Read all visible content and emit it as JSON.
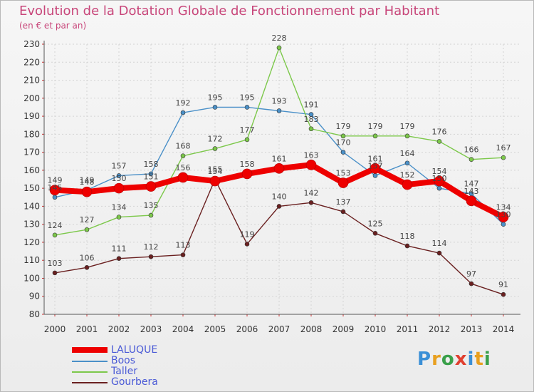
{
  "header": {
    "title": "Evolution de la Dotation Globale de Fonctionnement par Habitant",
    "subtitle": "(en € et par an)"
  },
  "logo": {
    "text": "Proxiti",
    "letters": [
      {
        "ch": "P",
        "color": "#3a8fd6"
      },
      {
        "ch": "r",
        "color": "#e8a020"
      },
      {
        "ch": "o",
        "color": "#3aa04a"
      },
      {
        "ch": "x",
        "color": "#e04030"
      },
      {
        "ch": "i",
        "color": "#3a8fd6"
      },
      {
        "ch": "t",
        "color": "#e8a020"
      },
      {
        "ch": "i",
        "color": "#3aa04a"
      }
    ]
  },
  "chart_data": {
    "type": "line",
    "title": "Evolution de la Dotation Globale de Fonctionnement par Habitant",
    "ylabel": "(en € et par an)",
    "xlabel": "",
    "categories": [
      "2000",
      "2001",
      "2002",
      "2003",
      "2004",
      "2005",
      "2006",
      "2007",
      "2008",
      "2009",
      "2010",
      "2011",
      "2012",
      "2013",
      "2014"
    ],
    "ylim": [
      80,
      230
    ],
    "yticks": [
      80,
      90,
      100,
      110,
      120,
      130,
      140,
      150,
      160,
      170,
      180,
      190,
      200,
      210,
      220,
      230
    ],
    "grid": true,
    "legend_position": "bottom-left",
    "series": [
      {
        "name": "Boos",
        "color": "#4a90c8",
        "values": [
          145,
          149,
          157,
          158,
          192,
          195,
          195,
          193,
          191,
          170,
          157,
          164,
          150,
          147,
          130
        ]
      },
      {
        "name": "Taller",
        "color": "#7cc84a",
        "values": [
          124,
          127,
          134,
          135,
          168,
          172,
          177,
          228,
          183,
          179,
          179,
          179,
          176,
          166,
          167
        ]
      },
      {
        "name": "Gourbera",
        "color": "#6a2020",
        "values": [
          103,
          106,
          111,
          112,
          113,
          155,
          119,
          140,
          142,
          137,
          125,
          118,
          114,
          97,
          91
        ]
      },
      {
        "name": "LALUQUE",
        "color": "#ee0000",
        "values": [
          149,
          148,
          150,
          151,
          156,
          154,
          158,
          161,
          163,
          153,
          161,
          152,
          154,
          143,
          134
        ]
      }
    ],
    "data_labels": {
      "Boos": [
        "145",
        "149",
        "157",
        "158",
        "192",
        "195",
        "195",
        "193",
        "191",
        "170",
        "157",
        "164",
        "150",
        "147",
        "130"
      ],
      "Taller": [
        "124",
        "127",
        "134",
        "135",
        "168",
        "172",
        "177",
        "228",
        "183",
        "179",
        "179",
        "179",
        "176",
        "166",
        "167"
      ],
      "Gourbera": [
        "103",
        "106",
        "111",
        "112",
        "113",
        "155",
        "119",
        "140",
        "142",
        "137",
        "125",
        "118",
        "114",
        "97",
        "91"
      ],
      "LALUQUE": [
        "149",
        "148",
        "150",
        "151",
        "156",
        "154",
        "158",
        "161",
        "163",
        "153",
        "161",
        "152",
        "154",
        "143",
        "134"
      ]
    }
  },
  "legend": {
    "items": [
      {
        "label": "LALUQUE",
        "color": "#ee0000"
      },
      {
        "label": "Boos",
        "color": "#4a90c8"
      },
      {
        "label": "Taller",
        "color": "#7cc84a"
      },
      {
        "label": "Gourbera",
        "color": "#6a2020"
      }
    ]
  }
}
